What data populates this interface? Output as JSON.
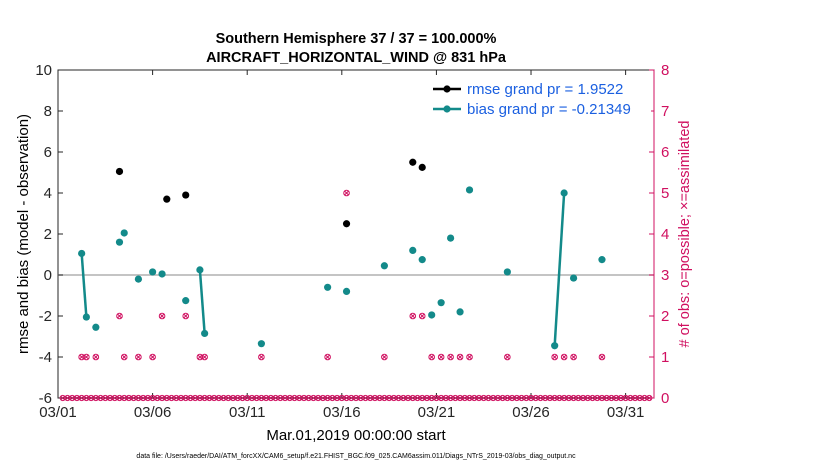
{
  "chart_data": {
    "type": "line",
    "title": "Southern Hemisphere 37 / 37 = 100.000%",
    "subtitle": "AIRCRAFT_HORIZONTAL_WIND @ 831 hPa",
    "xlabel": "Mar.01,2019 00:00:00 start",
    "ylabel": "rmse and bias (model - observation)",
    "ylabel_right": "# of obs: o=possible; ×=assimilated",
    "xlim": [
      0,
      31.5
    ],
    "ylim": [
      -6,
      10
    ],
    "ylim_right": [
      0,
      8
    ],
    "x_ticks": [
      0,
      5,
      10,
      15,
      20,
      25,
      30
    ],
    "x_tick_labels": [
      "03/01",
      "03/06",
      "03/11",
      "03/16",
      "03/21",
      "03/26",
      "03/31"
    ],
    "y_ticks": [
      -6,
      -4,
      -2,
      0,
      2,
      4,
      6,
      8,
      10
    ],
    "y_tick_labels": [
      "-6",
      "-4",
      "-2",
      "0",
      "2",
      "4",
      "6",
      "8",
      "10"
    ],
    "y_right_ticks": [
      0,
      1,
      2,
      3,
      4,
      5,
      6,
      7,
      8
    ],
    "y_right_tick_labels": [
      "0",
      "1",
      "2",
      "3",
      "4",
      "5",
      "6",
      "7",
      "8"
    ],
    "zero_line": 0,
    "legend": {
      "placement": "top-right",
      "entries": [
        "rmse grand pr = 1.9522",
        "bias grand pr = -0.21349"
      ]
    },
    "series": [
      {
        "name": "rmse grand pr = 1.9522",
        "color": "#000000",
        "points": [
          [
            3.25,
            5.05
          ],
          [
            5.75,
            3.7
          ],
          [
            6.75,
            3.9
          ],
          [
            15.25,
            2.5
          ],
          [
            18.75,
            5.5
          ],
          [
            19.25,
            5.25
          ]
        ]
      },
      {
        "name": "bias grand pr = -0.21349",
        "color": "#138a8a",
        "segments": [
          [
            [
              1.25,
              1.05
            ],
            [
              1.5,
              -2.05
            ]
          ],
          [
            [
              7.5,
              0.25
            ],
            [
              7.75,
              -2.85
            ]
          ],
          [
            [
              26.25,
              -3.45
            ],
            [
              26.75,
              4.0
            ]
          ]
        ],
        "points": [
          [
            1.25,
            1.05
          ],
          [
            1.5,
            -2.05
          ],
          [
            2.0,
            -2.55
          ],
          [
            3.25,
            1.6
          ],
          [
            3.5,
            2.05
          ],
          [
            4.25,
            -0.2
          ],
          [
            5.0,
            0.15
          ],
          [
            5.5,
            0.05
          ],
          [
            6.75,
            -1.25
          ],
          [
            7.5,
            0.25
          ],
          [
            7.75,
            -2.85
          ],
          [
            10.75,
            -3.35
          ],
          [
            14.25,
            -0.6
          ],
          [
            15.25,
            -0.8
          ],
          [
            17.25,
            0.45
          ],
          [
            18.75,
            1.2
          ],
          [
            19.25,
            0.75
          ],
          [
            19.75,
            -1.95
          ],
          [
            20.25,
            -1.35
          ],
          [
            20.75,
            1.8
          ],
          [
            21.25,
            -1.8
          ],
          [
            21.75,
            4.15
          ],
          [
            23.75,
            0.15
          ],
          [
            26.25,
            -3.45
          ],
          [
            26.75,
            4.0
          ],
          [
            27.25,
            -0.15
          ],
          [
            28.75,
            0.75
          ]
        ]
      },
      {
        "name": "obs possible",
        "color": "#d01060",
        "points": [
          [
            1.25,
            1
          ],
          [
            1.5,
            1
          ],
          [
            2.0,
            1
          ],
          [
            3.25,
            2
          ],
          [
            3.5,
            1
          ],
          [
            4.25,
            1
          ],
          [
            5.0,
            1
          ],
          [
            5.5,
            2
          ],
          [
            6.75,
            2
          ],
          [
            7.5,
            1
          ],
          [
            7.75,
            1
          ],
          [
            10.75,
            1
          ],
          [
            14.25,
            1
          ],
          [
            15.25,
            5
          ],
          [
            17.25,
            1
          ],
          [
            18.75,
            2
          ],
          [
            19.25,
            2
          ],
          [
            19.75,
            1
          ],
          [
            20.25,
            1
          ],
          [
            20.75,
            1
          ],
          [
            21.25,
            1
          ],
          [
            21.75,
            1
          ],
          [
            23.75,
            1
          ],
          [
            26.25,
            1
          ],
          [
            26.75,
            1
          ],
          [
            27.25,
            1
          ],
          [
            28.75,
            1
          ]
        ]
      }
    ]
  },
  "footer": "data file: /Users/raeder/DAI/ATM_forcXX/CAM6_setup/f.e21.FHIST_BGC.f09_025.CAM6assim.011/Diags_NTrS_2019-03/obs_diag_output.nc"
}
